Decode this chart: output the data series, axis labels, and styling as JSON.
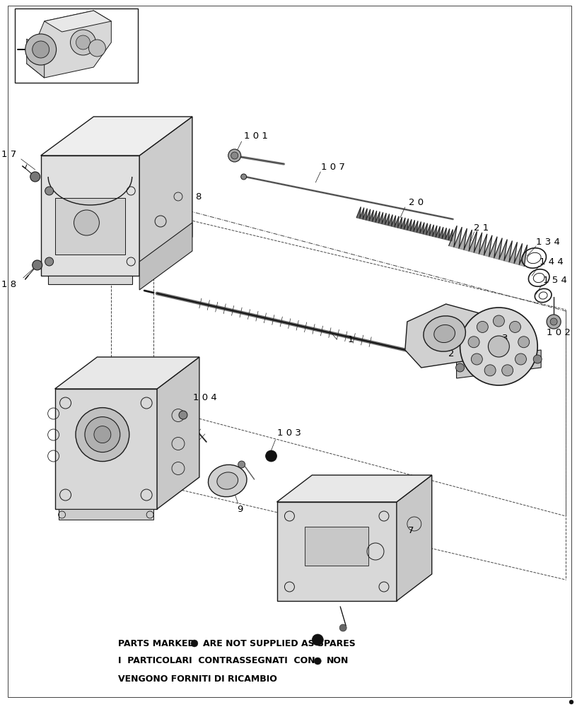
{
  "bg_color": "#ffffff",
  "line_color": "#1a1a1a",
  "text_color": "#000000",
  "fig_width": 8.16,
  "fig_height": 10.0,
  "footnote1a": "PARTS MARKED",
  "footnote1b": "ARE NOT SUPPLIED AS SPARES",
  "footnote2a": "I  PARTICOLARI  CONTRASSEGNATI  CON",
  "footnote2b": "NON",
  "footnote3": "VENGONO FORNITI DI RICAMBIO"
}
